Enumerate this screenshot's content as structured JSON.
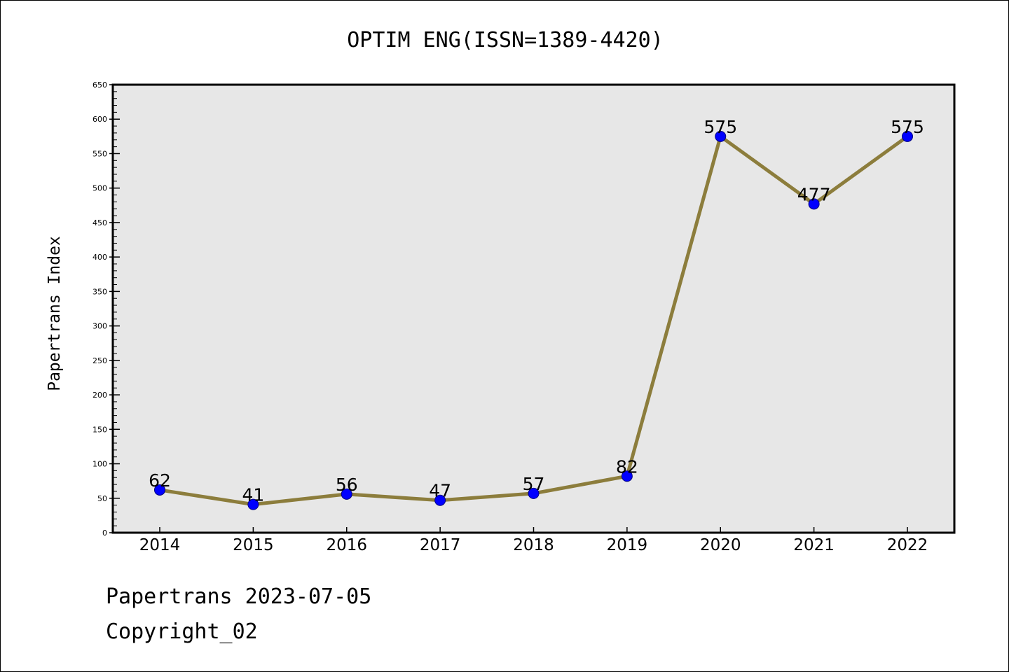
{
  "colors": {
    "line": "#8c7d3c",
    "marker_fill": "#0000ff",
    "marker_edge": "#000080",
    "plot_background": "#e7e7e7",
    "frame": "#000000"
  },
  "chart_data": {
    "type": "line",
    "title": "OPTIM ENG(ISSN=1389-4420)",
    "xlabel": "",
    "ylabel": "Papertrans Index",
    "categories": [
      "2014",
      "2015",
      "2016",
      "2017",
      "2018",
      "2019",
      "2020",
      "2021",
      "2022"
    ],
    "values": [
      62,
      41,
      56,
      47,
      57,
      82,
      575,
      477,
      575
    ],
    "data_labels": [
      "62",
      "41",
      "56",
      "47",
      "57",
      "82",
      "575",
      "477",
      "575"
    ],
    "ylim": [
      0,
      650
    ],
    "yticks": [
      0,
      50,
      100,
      150,
      200,
      250,
      300,
      350,
      400,
      450,
      500,
      550,
      600,
      650
    ],
    "ytick_labels": [
      "0",
      "50",
      "100",
      "150",
      "200",
      "250",
      "300",
      "350",
      "400",
      "450",
      "500",
      "550",
      "600",
      "650"
    ],
    "grid": false,
    "legend": "none"
  },
  "footer": {
    "line1": "Papertrans 2023-07-05",
    "line2": "Copyright_02"
  }
}
